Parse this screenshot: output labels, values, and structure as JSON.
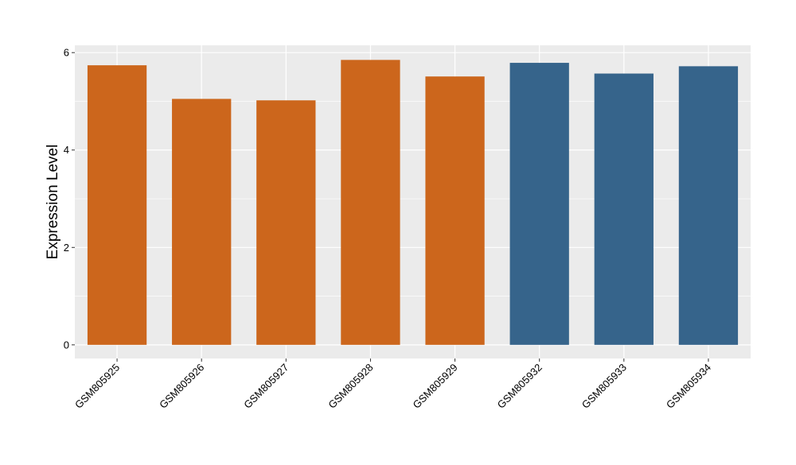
{
  "chart_data": {
    "type": "bar",
    "title": "",
    "xlabel": "",
    "ylabel": "Expression Level",
    "categories": [
      "GSM805925",
      "GSM805926",
      "GSM805927",
      "GSM805928",
      "GSM805929",
      "GSM805932",
      "GSM805933",
      "GSM805934"
    ],
    "values": [
      5.74,
      5.05,
      5.02,
      5.85,
      5.51,
      5.79,
      5.57,
      5.72
    ],
    "group_colors": [
      "#CC661C",
      "#CC661C",
      "#CC661C",
      "#CC661C",
      "#CC661C",
      "#36648B",
      "#36648B",
      "#36648B"
    ],
    "yticks": [
      0,
      2,
      4,
      6
    ],
    "ylim": [
      -0.28,
      6.15
    ],
    "grid": true,
    "panel_background": "#EBEBEB",
    "gridline_color": "#FFFFFF"
  }
}
